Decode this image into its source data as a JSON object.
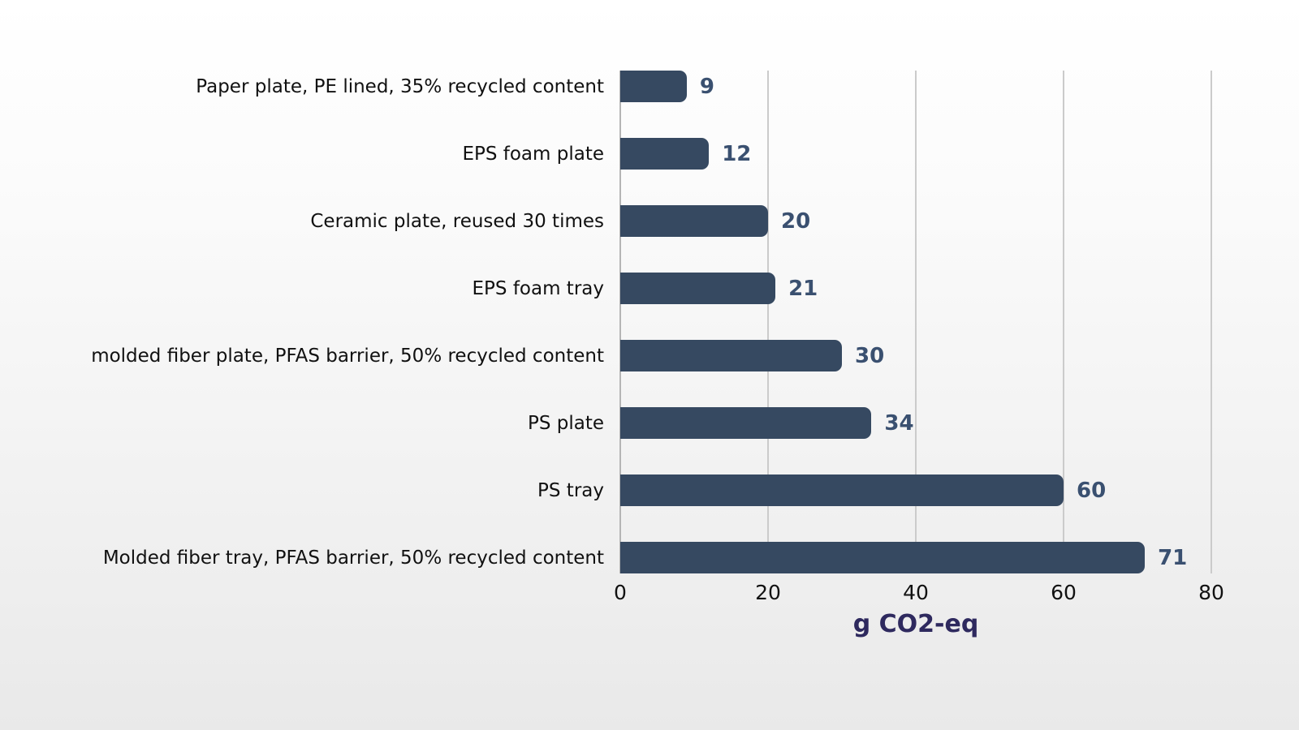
{
  "chart_data": {
    "type": "bar",
    "orientation": "horizontal",
    "title": "",
    "xlabel": "g CO2-eq",
    "ylabel": "",
    "categories": [
      "Paper plate, PE lined, 35% recycled content",
      "EPS foam plate",
      "Ceramic plate, reused 30 times",
      "EPS foam tray",
      "molded fiber plate, PFAS barrier, 50% recycled content",
      "PS plate",
      "PS tray",
      "Molded fiber tray, PFAS barrier, 50% recycled content"
    ],
    "values": [
      9,
      12,
      20,
      21,
      30,
      34,
      60,
      71
    ],
    "value_labels": [
      "9",
      "12",
      "20",
      "21",
      "30",
      "34",
      "60",
      "71"
    ],
    "x_ticks": [
      0,
      20,
      40,
      60,
      80
    ],
    "xlim": [
      0,
      80
    ],
    "grid": "vertical-only",
    "legend": "none"
  },
  "colors": {
    "bar": "#364961",
    "value_label": "#3a5070",
    "axis_title": "#2e295e",
    "category_label": "#111111",
    "tick_label": "#111111",
    "gridline": "#cbcbcb",
    "zero_axis_line": "#b5b5b5",
    "background_top": "#ffffff",
    "background_bottom": "#e9e9e9"
  }
}
